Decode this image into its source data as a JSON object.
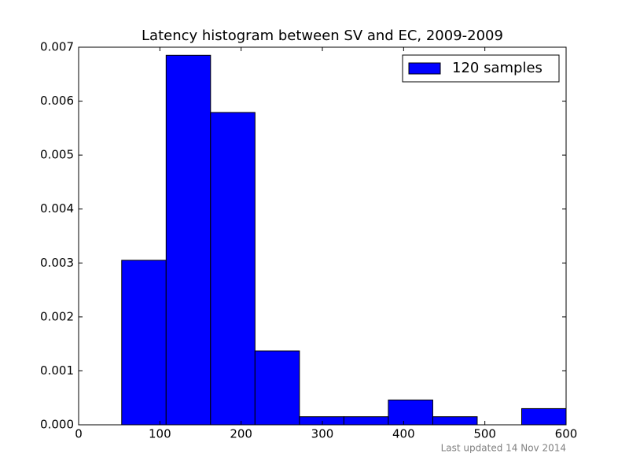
{
  "chart_data": {
    "type": "histogram",
    "title": "Latency histogram between SV and EC, 2009-2009",
    "bins": [
      53,
      107.7,
      162.4,
      217.1,
      271.8,
      326.5,
      381.2,
      435.9,
      490.6,
      545.3,
      600
    ],
    "series": [
      {
        "name": "120 samples",
        "color": "#0000ff",
        "values": [
          0.00305,
          0.00685,
          0.00579,
          0.00137,
          0.00015,
          0.00015,
          0.00046,
          0.00015,
          0,
          0.0003
        ]
      }
    ],
    "xlim": [
      0,
      600
    ],
    "xticks": [
      0,
      100,
      200,
      300,
      400,
      500,
      600
    ],
    "ylim": [
      0,
      0.007
    ],
    "yticks": [
      {
        "value": 0,
        "label": "0.000"
      },
      {
        "value": 0.001,
        "label": "0.001"
      },
      {
        "value": 0.002,
        "label": "0.002"
      },
      {
        "value": 0.003,
        "label": "0.003"
      },
      {
        "value": 0.004,
        "label": "0.004"
      },
      {
        "value": 0.005,
        "label": "0.005"
      },
      {
        "value": 0.006,
        "label": "0.006"
      },
      {
        "value": 0.007,
        "label": "0.007"
      }
    ],
    "legend": "upper right",
    "annotation": "Last updated 14 Nov 2014"
  }
}
